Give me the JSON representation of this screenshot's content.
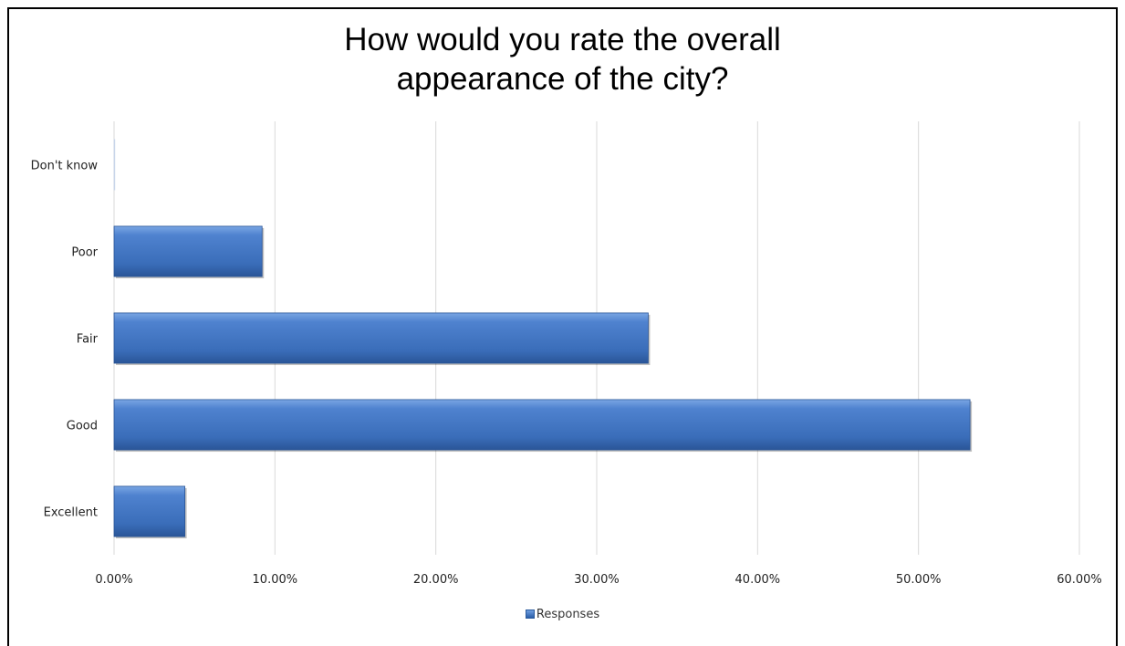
{
  "chart_data": {
    "type": "bar",
    "orientation": "horizontal",
    "title": "How would you rate the overall appearance of the city?",
    "title_lines": [
      "How would you rate the overall",
      "appearance of the city?"
    ],
    "categories": [
      "Excellent",
      "Good",
      "Fair",
      "Poor",
      "Don't know"
    ],
    "series": [
      {
        "name": "Responses",
        "values": [
          4.4,
          53.2,
          33.2,
          9.2,
          0.0
        ]
      }
    ],
    "xlim": [
      0,
      60
    ],
    "x_ticks": [
      "0.00%",
      "10.00%",
      "20.00%",
      "30.00%",
      "40.00%",
      "50.00%",
      "60.00%"
    ],
    "grid": true,
    "legend_position": "bottom",
    "bar_color": "#3f74c2"
  }
}
